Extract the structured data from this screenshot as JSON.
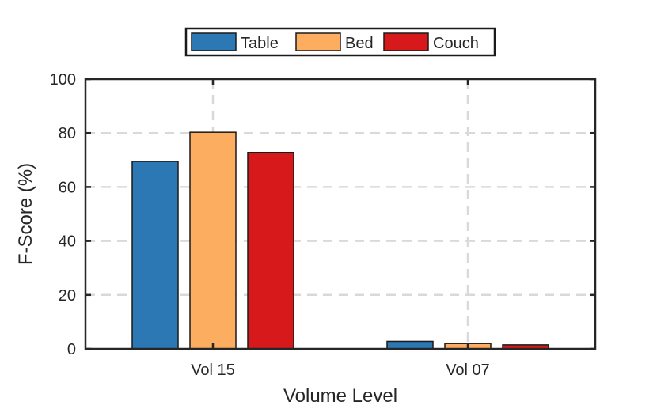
{
  "chart_data": {
    "type": "bar",
    "categories": [
      "Vol 15",
      "Vol 07"
    ],
    "series": [
      {
        "name": "Table",
        "values": [
          69.5,
          2.8
        ],
        "color": "#2b78b4"
      },
      {
        "name": "Bed",
        "values": [
          80.3,
          2.0
        ],
        "color": "#fdad60"
      },
      {
        "name": "Couch",
        "values": [
          72.8,
          1.5
        ],
        "color": "#d7191c"
      }
    ],
    "xlabel": "Volume Level",
    "ylabel": "F-Score (%)",
    "ylim": [
      0,
      100
    ],
    "yticks": [
      "0",
      "20",
      "40",
      "60",
      "80",
      "100"
    ],
    "grid": true,
    "legend": "top-center, horizontal"
  }
}
